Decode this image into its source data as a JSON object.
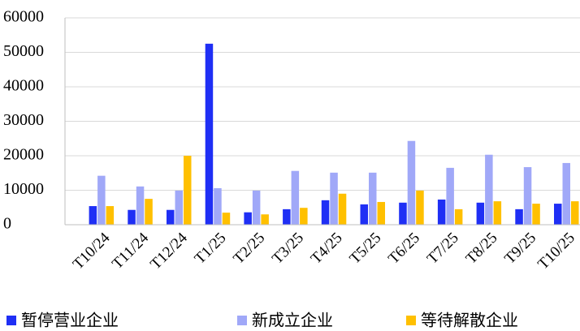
{
  "chart_data": {
    "type": "bar",
    "categories": [
      "T10/24",
      "T11/24",
      "T12/24",
      "T1/25",
      "T2/25",
      "T3/25",
      "T4/25",
      "T5/25",
      "T6/25",
      "T7/25",
      "T8/25",
      "T9/25",
      "T10/25"
    ],
    "series": [
      {
        "name": "暂停营业企业",
        "color": "#1f2ff5",
        "values": [
          5400,
          4300,
          4300,
          52500,
          3600,
          4500,
          7100,
          5900,
          6400,
          7300,
          6400,
          4500,
          6100
        ]
      },
      {
        "name": "新成立企业",
        "color": "#a0a8f8",
        "values": [
          14200,
          11100,
          9900,
          10600,
          9900,
          15600,
          15100,
          15100,
          24300,
          16500,
          20300,
          16700,
          17900
        ]
      },
      {
        "name": "等待解散企业",
        "color": "#ffc000",
        "values": [
          5400,
          7500,
          20000,
          3500,
          3000,
          4900,
          9000,
          6600,
          9900,
          4500,
          6800,
          6100,
          6800
        ]
      }
    ],
    "ylim": [
      0,
      60000
    ],
    "yticks": [
      0,
      10000,
      20000,
      30000,
      40000,
      50000,
      60000
    ],
    "grid": true,
    "legend": "bottom"
  }
}
